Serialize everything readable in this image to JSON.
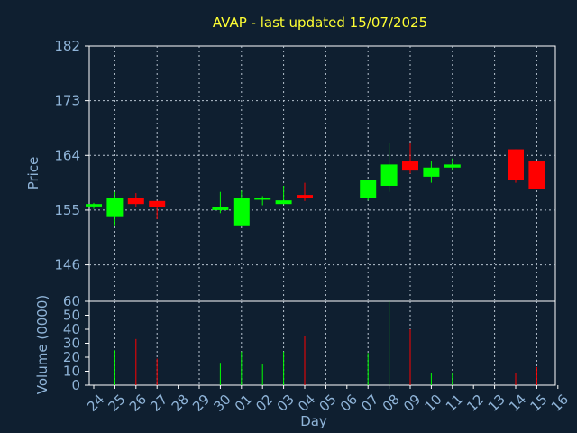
{
  "chart_data": {
    "type": "candlestick",
    "title": "AVAP - last updated 15/07/2025",
    "xlabel": "Day",
    "ylabel": "Price",
    "volume_label": "Volume (0000)",
    "price_ticks": [
      146,
      155,
      164,
      173,
      182
    ],
    "volume_ticks": [
      0,
      10,
      20,
      30,
      40,
      50,
      60
    ],
    "ylim": [
      140,
      182
    ],
    "volume_ylim": [
      0,
      60
    ],
    "grid": true,
    "colors": {
      "up": "#00ff00",
      "down": "#ff0000",
      "background": "#0f1f30",
      "title": "#ffff33",
      "axis_text": "#8fb4d8"
    },
    "days": [
      "24",
      "25",
      "26",
      "27",
      "28",
      "29",
      "30",
      "01",
      "02",
      "03",
      "04",
      "05",
      "06",
      "07",
      "08",
      "09",
      "10",
      "11",
      "12",
      "13",
      "14",
      "15",
      "16"
    ],
    "candles": [
      {
        "day": "24",
        "open": 155.6,
        "high": 156.2,
        "low": 155.2,
        "close": 156.0,
        "volume": 0
      },
      {
        "day": "25",
        "open": 154.0,
        "high": 158.0,
        "low": 152.5,
        "close": 157.0,
        "volume": 25
      },
      {
        "day": "26",
        "open": 157.0,
        "high": 157.8,
        "low": 155.5,
        "close": 156.0,
        "volume": 33
      },
      {
        "day": "27",
        "open": 156.5,
        "high": 156.5,
        "low": 153.5,
        "close": 155.5,
        "volume": 19
      },
      {
        "day": "30",
        "open": 155.0,
        "high": 158.0,
        "low": 154.5,
        "close": 155.5,
        "volume": 16
      },
      {
        "day": "01",
        "open": 152.5,
        "high": 158.2,
        "low": 152.5,
        "close": 157.0,
        "volume": 24
      },
      {
        "day": "02",
        "open": 156.8,
        "high": 157.3,
        "low": 155.8,
        "close": 157.0,
        "volume": 15
      },
      {
        "day": "03",
        "open": 156.0,
        "high": 159.0,
        "low": 156.0,
        "close": 156.6,
        "volume": 24
      },
      {
        "day": "04",
        "open": 157.5,
        "high": 159.5,
        "low": 156.5,
        "close": 157.0,
        "volume": 35
      },
      {
        "day": "07",
        "open": 157.0,
        "high": 160.0,
        "low": 156.6,
        "close": 160.0,
        "volume": 23
      },
      {
        "day": "08",
        "open": 159.0,
        "high": 166.0,
        "low": 158.0,
        "close": 162.5,
        "volume": 60
      },
      {
        "day": "09",
        "open": 163.0,
        "high": 166.0,
        "low": 161.0,
        "close": 161.5,
        "volume": 40
      },
      {
        "day": "10",
        "open": 160.5,
        "high": 163.0,
        "low": 159.5,
        "close": 162.0,
        "volume": 9
      },
      {
        "day": "11",
        "open": 162.0,
        "high": 163.5,
        "low": 161.5,
        "close": 162.5,
        "volume": 9
      },
      {
        "day": "14",
        "open": 165.0,
        "high": 165.0,
        "low": 159.5,
        "close": 160.0,
        "volume": 9
      },
      {
        "day": "15",
        "open": 163.0,
        "high": 163.0,
        "low": 158.5,
        "close": 158.5,
        "volume": 13
      }
    ]
  }
}
